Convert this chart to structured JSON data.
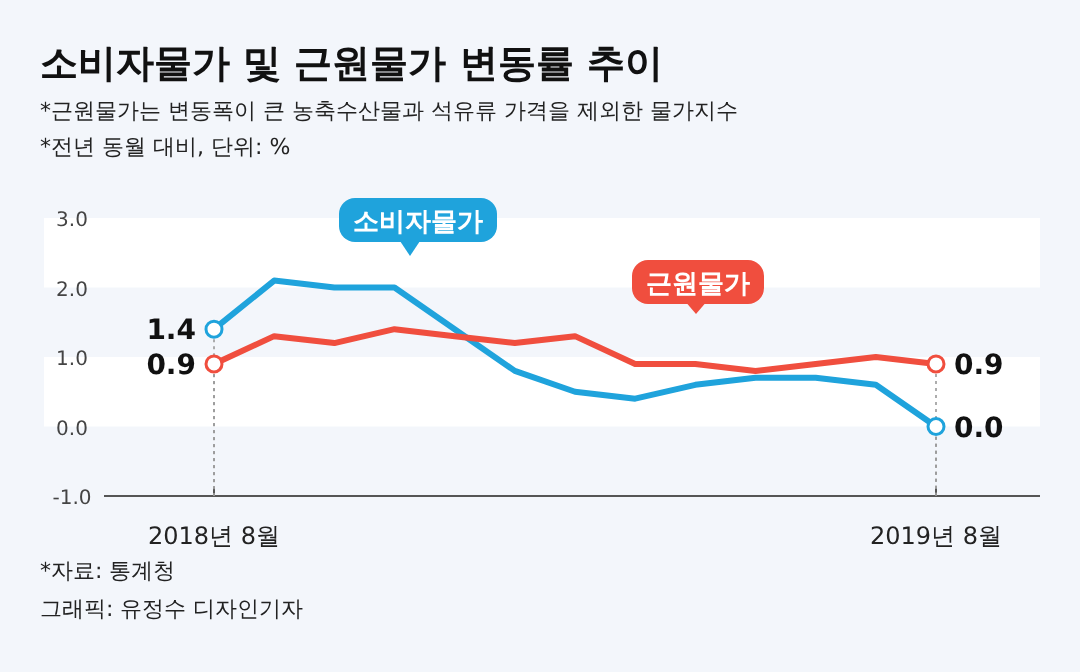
{
  "chart_data": {
    "type": "line",
    "title": "소비자물가 및 근원물가 변동률 추이",
    "subtitle": "*근원물가는 변동폭이 큰 농축수산물과 석유류 가격을 제외한 물가지수",
    "annotations": [
      "*전년 동월 대비, 단위: %",
      "*자료: 통계청",
      "그래픽: 유정수 디자인기자"
    ],
    "categories": [
      "2018년 8월",
      null,
      null,
      null,
      null,
      null,
      null,
      null,
      null,
      null,
      null,
      null,
      "2019년 8월"
    ],
    "series": [
      {
        "name": "소비자물가",
        "color": "#1fa3dc",
        "values": [
          1.4,
          2.1,
          2.0,
          2.0,
          1.4,
          0.8,
          0.5,
          0.4,
          0.6,
          0.7,
          0.7,
          0.6,
          0.0
        ],
        "value_labels": [
          "1.4",
          null,
          null,
          null,
          null,
          null,
          null,
          null,
          null,
          null,
          null,
          null,
          "0.0"
        ]
      },
      {
        "name": "근원물가",
        "color": "#f04e3e",
        "values": [
          0.9,
          1.3,
          1.2,
          1.4,
          1.3,
          1.2,
          1.3,
          0.9,
          0.9,
          0.8,
          0.9,
          1.0,
          0.9
        ],
        "value_labels": [
          "0.9",
          null,
          null,
          null,
          null,
          null,
          null,
          null,
          null,
          null,
          null,
          null,
          "0.9"
        ]
      }
    ],
    "ylim": [
      -1,
      3
    ],
    "yticks": [
      {
        "value": -1,
        "label": "-1.0"
      },
      {
        "value": 0,
        "label": "0.0"
      },
      {
        "value": 1,
        "label": "1.0"
      },
      {
        "value": 2,
        "label": "2.0"
      },
      {
        "value": 3,
        "label": "3.0"
      }
    ],
    "bands": [
      {
        "axis": "y",
        "from": 0,
        "to": 1,
        "color": "#ffffff"
      },
      {
        "axis": "y",
        "from": 2,
        "to": 3,
        "color": "#ffffff"
      }
    ],
    "line_style": "solid",
    "legend": false
  }
}
